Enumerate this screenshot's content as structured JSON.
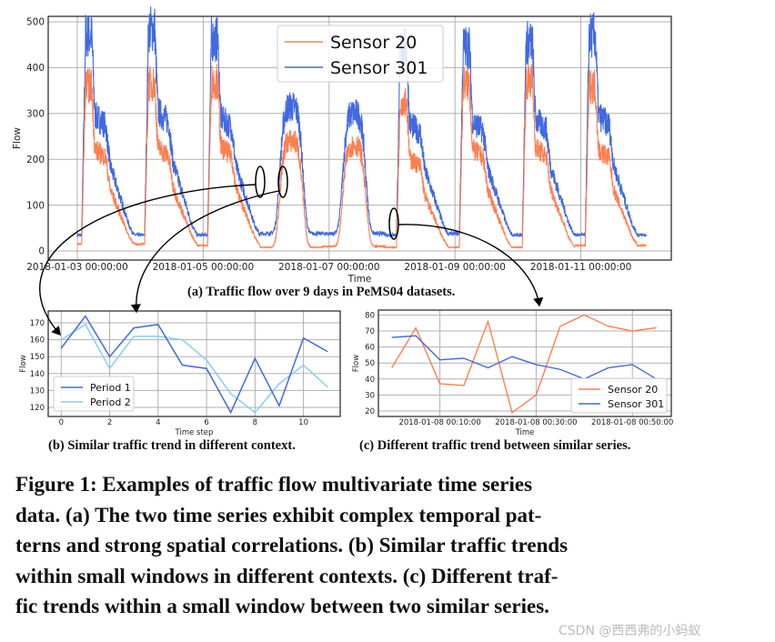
{
  "colors": {
    "sensor20": "#ff7f50",
    "sensor301": "#4169e1",
    "period1": "#4169e1",
    "period2": "#87cefa"
  },
  "chart_data": [
    {
      "id": "a",
      "type": "line",
      "caption": "(a) Traffic flow over 9 days in PeMS04 datasets.",
      "xlabel": "Time",
      "ylabel": "Flow",
      "ylim": [
        -15,
        515
      ],
      "yticks": [
        "0",
        "100",
        "200",
        "300",
        "400",
        "500"
      ],
      "xticks": [
        "2018-01-03 00:00:00",
        "2018-01-05 00:00:00",
        "2018-01-07 00:00:00",
        "2018-01-09 00:00:00",
        "2018-01-11 00:00:00"
      ],
      "days": [
        "2018-01-03",
        "2018-01-04",
        "2018-01-05",
        "2018-01-06",
        "2018-01-07",
        "2018-01-08",
        "2018-01-09",
        "2018-01-10",
        "2018-01-11"
      ],
      "grid": true,
      "legend_position": "top-center",
      "series": [
        {
          "name": "Sensor 20",
          "daily_peak": [
            360,
            365,
            370,
            240,
            230,
            330,
            365,
            370,
            360
          ],
          "daily_trough": [
            15,
            15,
            12,
            8,
            10,
            8,
            8,
            8,
            12
          ]
        },
        {
          "name": "Sensor 301",
          "daily_peak": [
            470,
            485,
            462,
            315,
            300,
            440,
            445,
            455,
            470
          ],
          "daily_trough": [
            35,
            35,
            35,
            38,
            38,
            35,
            38,
            35,
            35
          ]
        }
      ]
    },
    {
      "id": "b",
      "type": "line",
      "caption": "(b) Similar traffic trend in different context.",
      "xlabel": "Time step",
      "ylabel": "Flow",
      "xticks": [
        "0",
        "2",
        "4",
        "6",
        "8",
        "10"
      ],
      "yticks": [
        "120",
        "130",
        "140",
        "150",
        "160",
        "170"
      ],
      "grid": true,
      "legend_position": "bottom-left",
      "x": [
        0,
        1,
        2,
        3,
        4,
        5,
        6,
        7,
        8,
        9,
        10,
        11
      ],
      "series": [
        {
          "name": "Period 1",
          "values": [
            155,
            174,
            150,
            167,
            169,
            145,
            143,
            117,
            149,
            121,
            161,
            153
          ]
        },
        {
          "name": "Period 2",
          "values": [
            160,
            169,
            143,
            162,
            162,
            160,
            148,
            128,
            117,
            134,
            145,
            132
          ]
        }
      ]
    },
    {
      "id": "c",
      "type": "line",
      "caption": "(c) Different traffic trend between similar series.",
      "xlabel": "Time",
      "ylabel": "Flow",
      "xticks": [
        "2018-01-08 00:10:00",
        "2018-01-08 00:30:00",
        "2018-01-08 00:50:00"
      ],
      "yticks": [
        "20",
        "30",
        "40",
        "50",
        "60",
        "70",
        "80"
      ],
      "grid": true,
      "legend_position": "bottom-right",
      "x": [
        "00:00",
        "00:05",
        "00:10",
        "00:15",
        "00:20",
        "00:25",
        "00:30",
        "00:35",
        "00:40",
        "00:45",
        "00:50",
        "00:55"
      ],
      "series": [
        {
          "name": "Sensor 20",
          "values": [
            47,
            72,
            37,
            36,
            76,
            19,
            30,
            73,
            80,
            73,
            70,
            72
          ]
        },
        {
          "name": "Sensor 301",
          "values": [
            66,
            67,
            52,
            53,
            47,
            54,
            49,
            46,
            40,
            47,
            49,
            40
          ]
        }
      ]
    }
  ],
  "figure_caption": [
    "Figure 1: Examples of traffic flow multivariate time series",
    "data. (a) The two time series exhibit complex temporal pat-",
    "terns and strong spatial correlations. (b) Similar traffic trends",
    "within small windows in different contexts. (c) Different traf-",
    "fic trends within a small window between two similar series."
  ],
  "watermark": "CSDN @西西弗的小蚂蚁"
}
